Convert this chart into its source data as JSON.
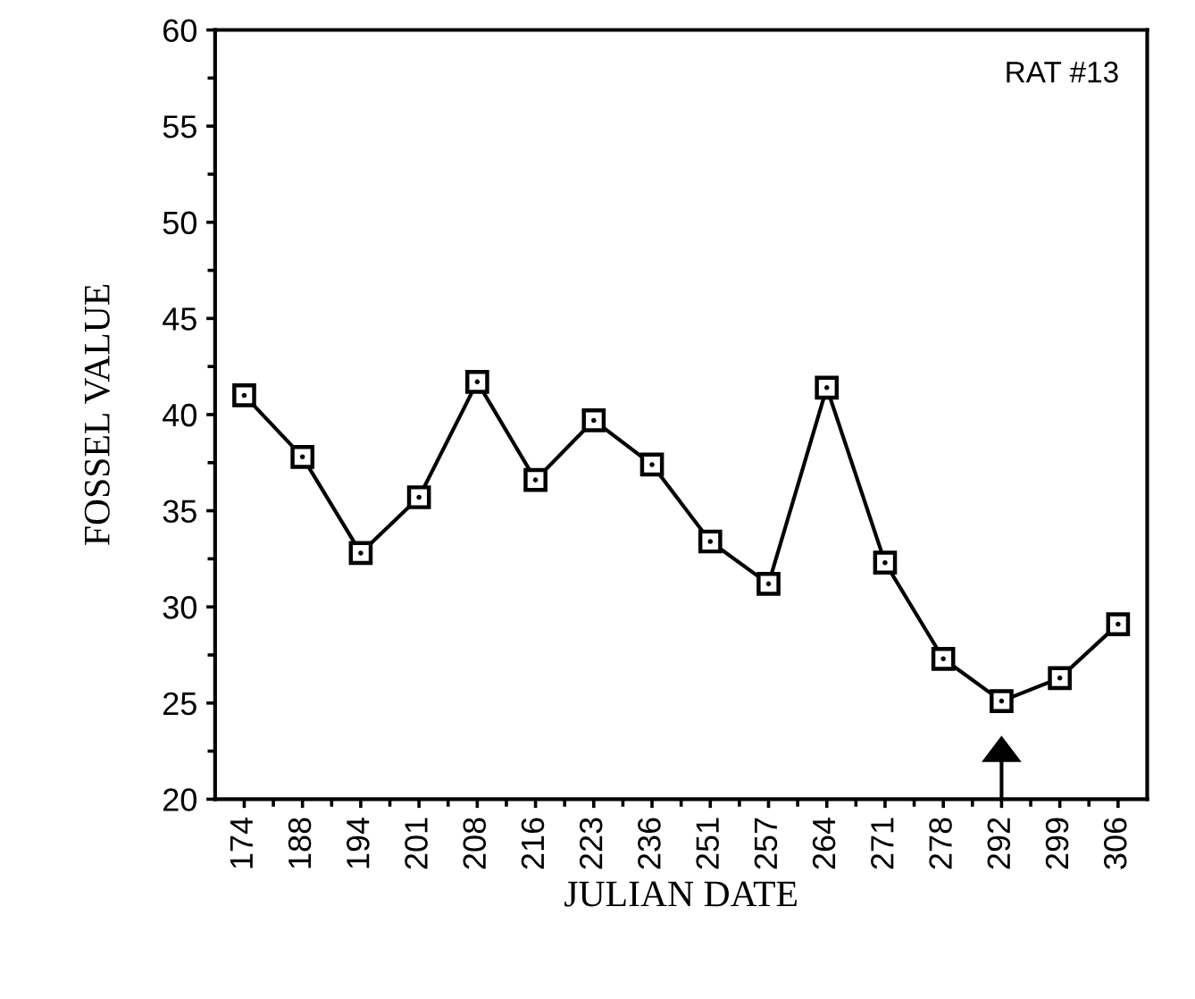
{
  "chart_data": {
    "type": "line",
    "xlabel": "JULIAN DATE",
    "ylabel": "FOSSEL VALUE",
    "annotations": [
      "RAT #13"
    ],
    "categories": [
      "174",
      "188",
      "194",
      "201",
      "208",
      "216",
      "223",
      "236",
      "251",
      "257",
      "264",
      "271",
      "278",
      "292",
      "299",
      "306"
    ],
    "series": [
      {
        "color": "#000000",
        "values": [
          41,
          37.8,
          32.8,
          35.7,
          41.7,
          36.6,
          39.7,
          37.4,
          33.4,
          31.2,
          41.4,
          32.3,
          27.3,
          25.1,
          26.3,
          29.1
        ]
      }
    ],
    "ylim": [
      20,
      60
    ],
    "yticks": [
      20,
      25,
      30,
      35,
      40,
      45,
      50,
      55,
      60
    ],
    "marker": "square",
    "line_style": "solid",
    "grid": false,
    "legend": false
  }
}
